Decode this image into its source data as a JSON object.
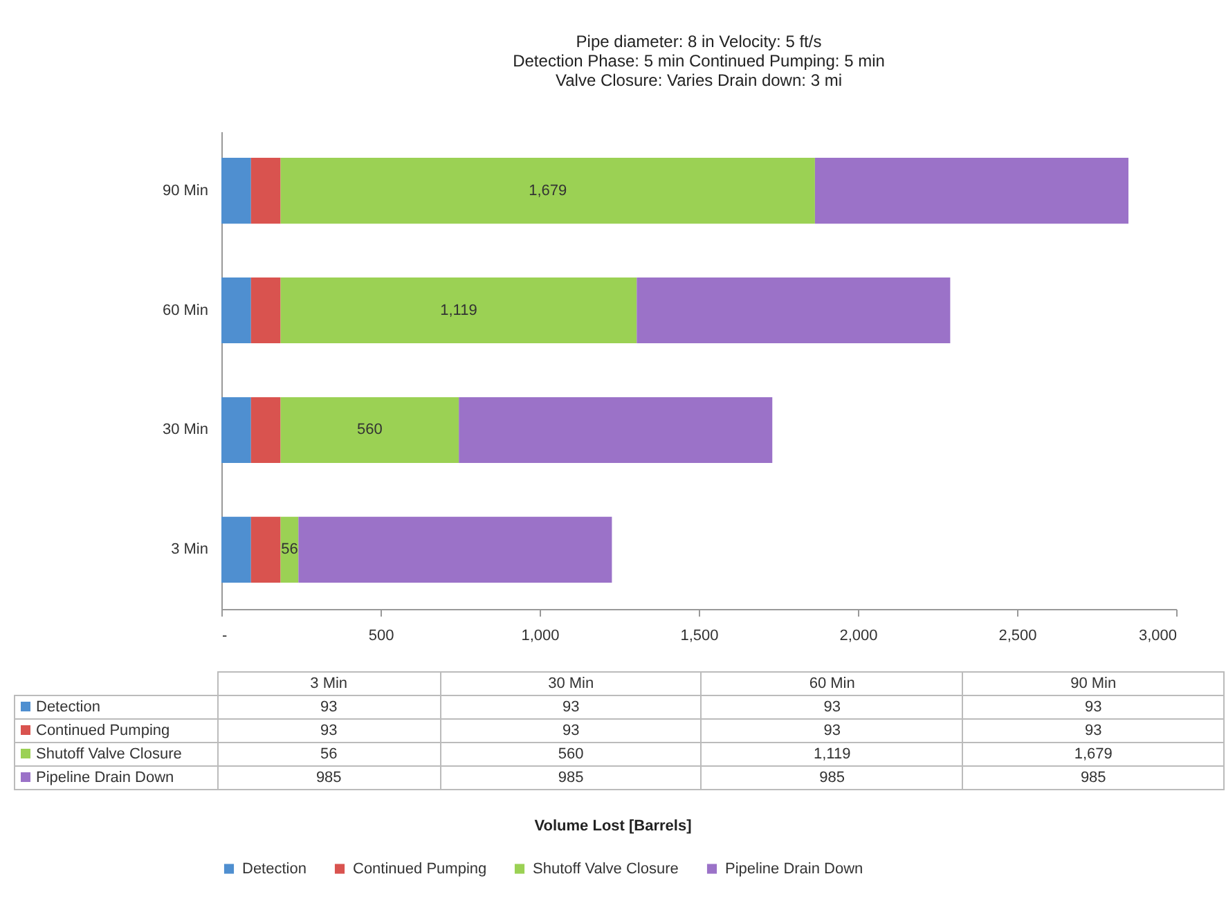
{
  "chart_data": [
    {
      "type": "bar",
      "orientation": "horizontal",
      "stacked": true,
      "title": "Pipe diameter: 8 in   Velocity: 5 ft/s\nDetection Phase: 5 min   Continued Pumping: 5 min\nValve Closure: Varies   Drain down: 3 mi",
      "categories": [
        "90 Min",
        "60 Min",
        "30 Min",
        "3 Min"
      ],
      "series": [
        {
          "name": "Detection",
          "color": "#4f8fd0",
          "values": [
            93,
            93,
            93,
            93
          ]
        },
        {
          "name": "Continued Pumping",
          "color": "#d9534f",
          "values": [
            93,
            93,
            93,
            93
          ]
        },
        {
          "name": "Shutoff Valve Closure",
          "color": "#9bd154",
          "values": [
            1679,
            1119,
            560,
            56
          ],
          "value_labels": [
            "1,679",
            "1,119",
            "560",
            "56"
          ]
        },
        {
          "name": "Pipeline Drain Down",
          "color": "#9b72c8",
          "values": [
            985,
            985,
            985,
            985
          ]
        }
      ],
      "xlim": [
        0,
        3000
      ],
      "xticks": [
        {
          "value": 0,
          "label": "-"
        },
        500,
        {
          "value": 1000,
          "label": "1,000"
        },
        {
          "value": 1500,
          "label": "1,500"
        },
        {
          "value": 2000,
          "label": "2,000"
        },
        {
          "value": 2500,
          "label": "2,500"
        },
        {
          "value": 3000,
          "label": "3,000"
        }
      ],
      "annotations": [
        "Volume Lost [Barrels]"
      ],
      "legend": "bottom"
    },
    {
      "type": "other",
      "data_labels": true,
      "categories": [
        "3 Min",
        "30 Min",
        "60 Min",
        "90 Min"
      ],
      "series": [
        {
          "name": "Detection",
          "color": "#4f8fd0",
          "values": [
            93,
            93,
            93,
            93
          ]
        },
        {
          "name": "Continued Pumping",
          "color": "#d9534f",
          "values": [
            93,
            93,
            93,
            93
          ]
        },
        {
          "name": "Shutoff Valve Closure",
          "color": "#9bd154",
          "values": [
            56,
            560,
            1119,
            1679
          ],
          "value_labels": [
            "56",
            "560",
            "1,119",
            "1,679"
          ]
        },
        {
          "name": "Pipeline Drain Down",
          "color": "#9b72c8",
          "values": [
            985,
            985,
            985,
            985
          ]
        }
      ]
    }
  ]
}
